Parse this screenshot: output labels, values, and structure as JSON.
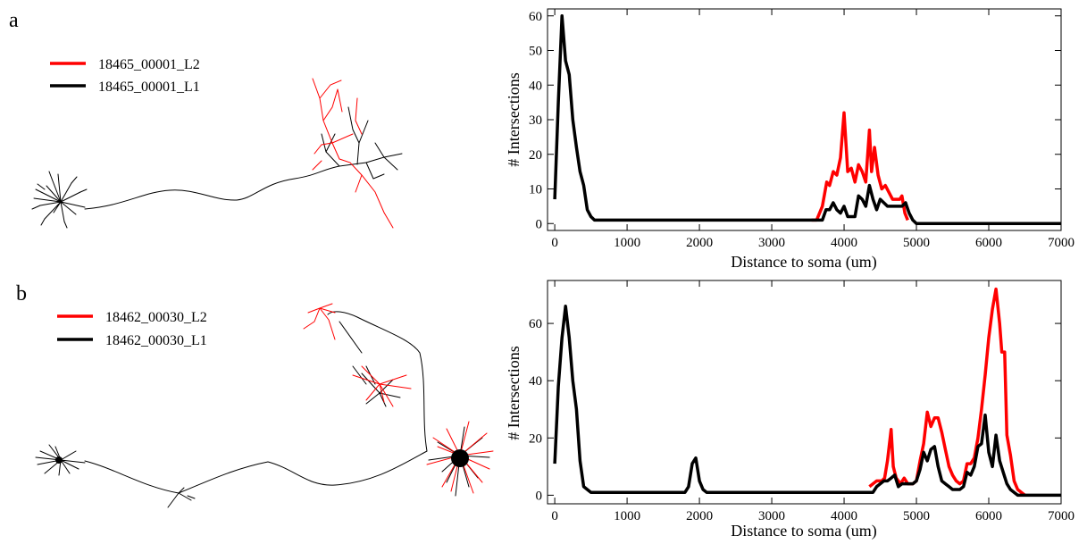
{
  "panels": [
    {
      "letter": "a",
      "legend": [
        {
          "label": "18465_00001_L2",
          "color": "#ff0000"
        },
        {
          "label": "18465_00001_L1",
          "color": "#000000"
        }
      ]
    },
    {
      "letter": "b",
      "legend": [
        {
          "label": "18462_00030_L2",
          "color": "#ff0000"
        },
        {
          "label": "18462_00030_L1",
          "color": "#000000"
        }
      ]
    }
  ],
  "chart_data": [
    {
      "type": "line",
      "xlabel": "Distance to soma (um)",
      "ylabel": "# Intersections",
      "xlim": [
        -100,
        7000
      ],
      "ylim": [
        -2,
        62
      ],
      "xticks": [
        0,
        1000,
        2000,
        3000,
        4000,
        5000,
        6000,
        7000
      ],
      "yticks": [
        0,
        10,
        20,
        30,
        40,
        50,
        60
      ],
      "grid": false,
      "series": [
        {
          "name": "18465_00001_L2",
          "color": "#ff0000",
          "points": [
            [
              3550,
              1
            ],
            [
              3620,
              1
            ],
            [
              3700,
              5
            ],
            [
              3760,
              12
            ],
            [
              3800,
              11
            ],
            [
              3850,
              15
            ],
            [
              3900,
              14
            ],
            [
              3950,
              19
            ],
            [
              4000,
              32
            ],
            [
              4050,
              15
            ],
            [
              4100,
              16
            ],
            [
              4150,
              12
            ],
            [
              4200,
              17
            ],
            [
              4250,
              15
            ],
            [
              4300,
              12
            ],
            [
              4350,
              27
            ],
            [
              4380,
              15
            ],
            [
              4420,
              22
            ],
            [
              4470,
              14
            ],
            [
              4520,
              10
            ],
            [
              4570,
              11
            ],
            [
              4620,
              9
            ],
            [
              4670,
              7
            ],
            [
              4720,
              7
            ],
            [
              4770,
              7
            ],
            [
              4800,
              8
            ],
            [
              4840,
              3
            ],
            [
              4880,
              1
            ]
          ]
        },
        {
          "name": "18465_00001_L1",
          "color": "#000000",
          "points": [
            [
              0,
              7
            ],
            [
              50,
              35
            ],
            [
              100,
              60
            ],
            [
              150,
              47
            ],
            [
              200,
              43
            ],
            [
              250,
              30
            ],
            [
              300,
              22
            ],
            [
              350,
              15
            ],
            [
              400,
              11
            ],
            [
              450,
              4
            ],
            [
              500,
              2
            ],
            [
              550,
              1
            ],
            [
              1000,
              1
            ],
            [
              2000,
              1
            ],
            [
              3000,
              1
            ],
            [
              3700,
              1
            ],
            [
              3750,
              4
            ],
            [
              3800,
              4
            ],
            [
              3850,
              6
            ],
            [
              3900,
              4
            ],
            [
              3950,
              3
            ],
            [
              4000,
              5
            ],
            [
              4050,
              2
            ],
            [
              4100,
              2
            ],
            [
              4150,
              2
            ],
            [
              4200,
              8
            ],
            [
              4250,
              7
            ],
            [
              4300,
              5
            ],
            [
              4350,
              11
            ],
            [
              4400,
              7
            ],
            [
              4450,
              4
            ],
            [
              4500,
              7
            ],
            [
              4550,
              6
            ],
            [
              4600,
              5
            ],
            [
              4650,
              5
            ],
            [
              4700,
              5
            ],
            [
              4750,
              5
            ],
            [
              4800,
              5
            ],
            [
              4850,
              6
            ],
            [
              4900,
              3
            ],
            [
              4950,
              1
            ],
            [
              5000,
              0
            ],
            [
              6000,
              0
            ],
            [
              7000,
              0
            ]
          ]
        }
      ]
    },
    {
      "type": "line",
      "xlabel": "Distance to soma (um)",
      "ylabel": "# Intersections",
      "xlim": [
        -100,
        7000
      ],
      "ylim": [
        -3,
        75
      ],
      "xticks": [
        0,
        1000,
        2000,
        3000,
        4000,
        5000,
        6000,
        7000
      ],
      "yticks": [
        0,
        20,
        40,
        60
      ],
      "grid": false,
      "series": [
        {
          "name": "18462_00030_L2",
          "color": "#ff0000",
          "points": [
            [
              4350,
              3
            ],
            [
              4450,
              5
            ],
            [
              4520,
              5
            ],
            [
              4560,
              6
            ],
            [
              4600,
              12
            ],
            [
              4650,
              23
            ],
            [
              4680,
              10
            ],
            [
              4720,
              6
            ],
            [
              4780,
              4
            ],
            [
              4830,
              6
            ],
            [
              4880,
              4
            ],
            [
              4950,
              4
            ],
            [
              5000,
              5
            ],
            [
              5050,
              12
            ],
            [
              5100,
              18
            ],
            [
              5150,
              29
            ],
            [
              5200,
              24
            ],
            [
              5250,
              27
            ],
            [
              5300,
              27
            ],
            [
              5350,
              22
            ],
            [
              5400,
              16
            ],
            [
              5450,
              10
            ],
            [
              5500,
              7
            ],
            [
              5550,
              5
            ],
            [
              5600,
              4
            ],
            [
              5650,
              5
            ],
            [
              5700,
              11
            ],
            [
              5750,
              11
            ],
            [
              5800,
              13
            ],
            [
              5850,
              20
            ],
            [
              5900,
              30
            ],
            [
              5950,
              42
            ],
            [
              6000,
              55
            ],
            [
              6050,
              65
            ],
            [
              6100,
              72
            ],
            [
              6150,
              60
            ],
            [
              6180,
              50
            ],
            [
              6220,
              50
            ],
            [
              6250,
              21
            ],
            [
              6300,
              14
            ],
            [
              6350,
              5
            ],
            [
              6400,
              2
            ],
            [
              6450,
              1
            ],
            [
              6500,
              0
            ]
          ]
        },
        {
          "name": "18462_00030_L1",
          "color": "#000000",
          "points": [
            [
              0,
              11
            ],
            [
              50,
              38
            ],
            [
              100,
              55
            ],
            [
              150,
              66
            ],
            [
              200,
              55
            ],
            [
              250,
              40
            ],
            [
              300,
              30
            ],
            [
              350,
              12
            ],
            [
              400,
              3
            ],
            [
              450,
              2
            ],
            [
              500,
              1
            ],
            [
              1000,
              1
            ],
            [
              1500,
              1
            ],
            [
              1800,
              1
            ],
            [
              1850,
              3
            ],
            [
              1900,
              11
            ],
            [
              1950,
              13
            ],
            [
              2000,
              5
            ],
            [
              2050,
              2
            ],
            [
              2100,
              1
            ],
            [
              3000,
              1
            ],
            [
              4000,
              1
            ],
            [
              4400,
              1
            ],
            [
              4450,
              3
            ],
            [
              4500,
              4
            ],
            [
              4550,
              5
            ],
            [
              4600,
              5
            ],
            [
              4650,
              6
            ],
            [
              4700,
              7
            ],
            [
              4750,
              3
            ],
            [
              4800,
              4
            ],
            [
              4850,
              4
            ],
            [
              4900,
              4
            ],
            [
              4950,
              4
            ],
            [
              5000,
              5
            ],
            [
              5050,
              9
            ],
            [
              5100,
              15
            ],
            [
              5150,
              12
            ],
            [
              5200,
              16
            ],
            [
              5250,
              17
            ],
            [
              5300,
              10
            ],
            [
              5350,
              5
            ],
            [
              5400,
              4
            ],
            [
              5450,
              3
            ],
            [
              5500,
              2
            ],
            [
              5550,
              2
            ],
            [
              5600,
              2
            ],
            [
              5650,
              3
            ],
            [
              5700,
              8
            ],
            [
              5750,
              7
            ],
            [
              5800,
              10
            ],
            [
              5850,
              17
            ],
            [
              5900,
              18
            ],
            [
              5950,
              28
            ],
            [
              6000,
              15
            ],
            [
              6050,
              10
            ],
            [
              6100,
              21
            ],
            [
              6150,
              12
            ],
            [
              6200,
              8
            ],
            [
              6250,
              4
            ],
            [
              6300,
              2
            ],
            [
              6350,
              1
            ],
            [
              6400,
              0
            ],
            [
              7000,
              0
            ]
          ]
        }
      ]
    }
  ]
}
